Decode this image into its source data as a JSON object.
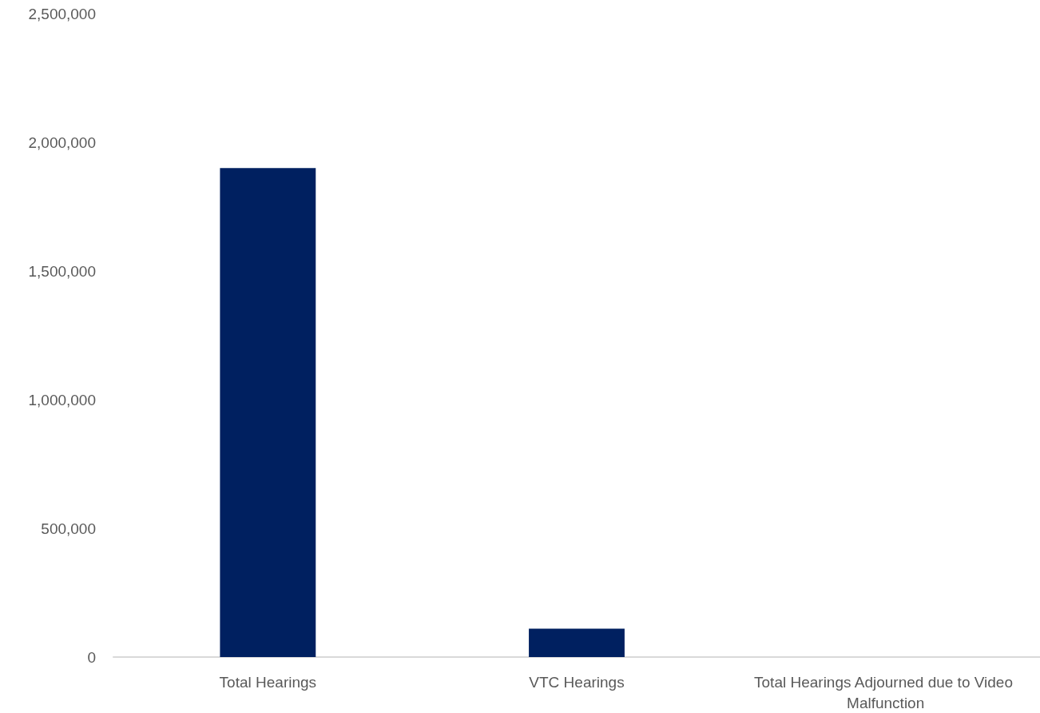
{
  "chart_data": {
    "type": "bar",
    "categories": [
      "Total Hearings",
      "VTC Hearings",
      "Total Hearings Adjourned due to Video Malfunction"
    ],
    "values": [
      1900000,
      110000,
      0
    ],
    "color": "#002060",
    "ylim": [
      0,
      2500000
    ],
    "yticks": [
      {
        "value": 0,
        "label": "0"
      },
      {
        "value": 500000,
        "label": "500,000"
      },
      {
        "value": 1000000,
        "label": "1,000,000"
      },
      {
        "value": 1500000,
        "label": "1,500,000"
      },
      {
        "value": 2000000,
        "label": "2,000,000"
      },
      {
        "value": 2500000,
        "label": "2,500,000"
      }
    ],
    "grid": false
  }
}
